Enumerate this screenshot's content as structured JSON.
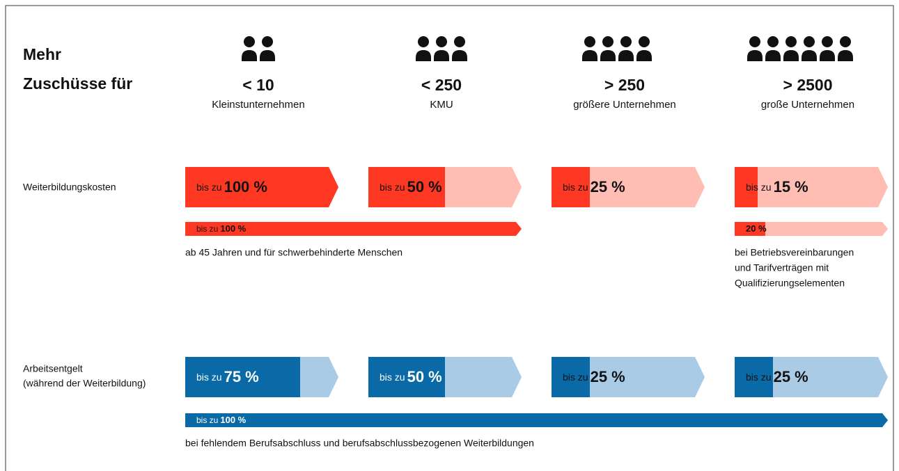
{
  "heading": [
    "Mehr",
    "Zuschüsse für"
  ],
  "columns": [
    {
      "size": "< 10",
      "label": "Kleinstunternehmen"
    },
    {
      "size": "< 250",
      "label": "KMU"
    },
    {
      "size": "> 250",
      "label": "größere Unternehmen"
    },
    {
      "size": "> 2500",
      "label": "große Unternehmen"
    }
  ],
  "rows": [
    {
      "label": [
        "Weiterbildungskosten"
      ],
      "color": "#ff3823",
      "light": "#ffbdb4",
      "cells": [
        {
          "prefix": "bis zu",
          "value": 100,
          "label": "100 %",
          "text_color": "#111111"
        },
        {
          "prefix": "bis zu",
          "value": 50,
          "label": "50 %",
          "text_color": "#111111"
        },
        {
          "prefix": "bis zu",
          "value": 25,
          "label": "25 %",
          "text_color": "#111111"
        },
        {
          "prefix": "bis zu",
          "value": 15,
          "label": "15 %",
          "text_color": "#111111"
        }
      ],
      "spans": [
        {
          "from": 0,
          "to": 1,
          "prefix": "bis zu",
          "value": 100,
          "label": "100 %",
          "note": [
            "ab 45 Jahren und für schwerbehinderte Menschen"
          ]
        },
        {
          "from": 3,
          "to": 3,
          "value": 20,
          "label": "20 %",
          "note": [
            "bei Betriebsvereinbarungen",
            "und Tarifverträgen mit",
            "Qualifizierungselementen"
          ]
        }
      ]
    },
    {
      "label": [
        "Arbeitsentgelt",
        "(während der Weiterbildung)"
      ],
      "color": "#0a6aa8",
      "light": "#a9cbe5",
      "cells": [
        {
          "prefix": "bis zu",
          "value": 75,
          "label": "75 %",
          "text_color": "#ffffff"
        },
        {
          "prefix": "bis zu",
          "value": 50,
          "label": "50 %",
          "text_color": "#ffffff"
        },
        {
          "prefix": "bis zu",
          "value": 25,
          "label": "25 %",
          "text_color": "#111111"
        },
        {
          "prefix": "bis zu",
          "value": 25,
          "label": "25 %",
          "text_color": "#111111"
        }
      ],
      "spans": [
        {
          "from": 0,
          "to": 3,
          "prefix": "bis zu",
          "value": 100,
          "label": "100 %",
          "text_color": "#ffffff",
          "note": [
            "bei fehlendem Berufsabschluss und berufsabschlussbezogenen Weiterbildungen"
          ]
        }
      ]
    }
  ]
}
